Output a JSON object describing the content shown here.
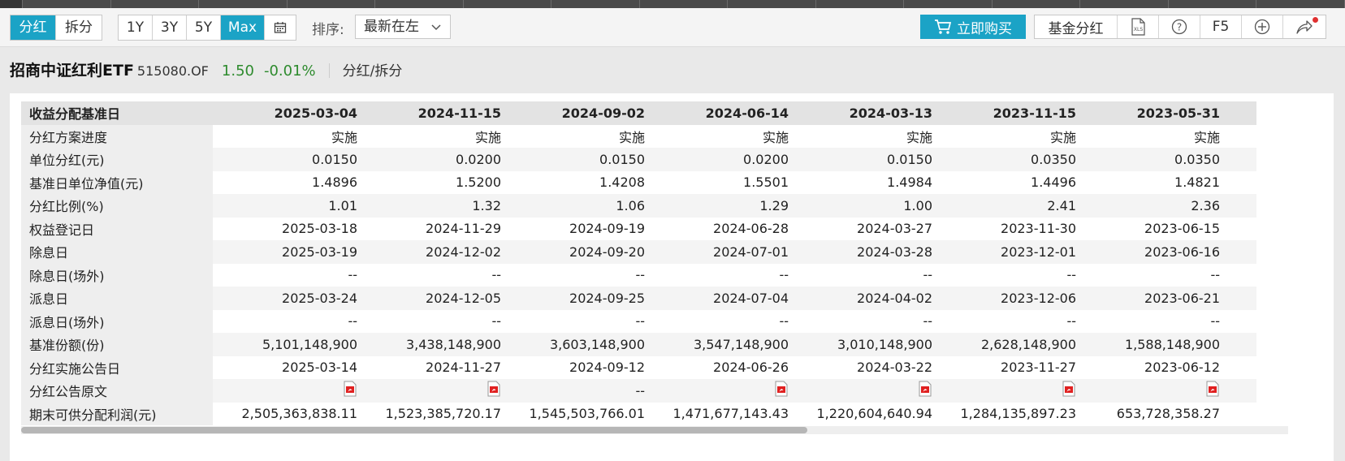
{
  "toolbar": {
    "view_tabs": [
      "分红",
      "拆分"
    ],
    "period_tabs": [
      "1Y",
      "3Y",
      "5Y",
      "Max"
    ],
    "sort_label": "排序:",
    "sort_value": "最新在左",
    "buy_label": "立即购买",
    "fund_dividend_label": "基金分红",
    "f5_label": "F5",
    "accent_color": "#1ba3c6"
  },
  "fund": {
    "name": "招商中证红利ETF",
    "code": "515080.OF",
    "nav": "1.50",
    "change": "-0.01%",
    "view": "分红/拆分"
  },
  "table": {
    "header_label": "收益分配基准日",
    "dates": [
      "2025-03-04",
      "2024-11-15",
      "2024-09-02",
      "2024-06-14",
      "2024-03-13",
      "2023-11-15",
      "2023-05-31"
    ],
    "rows": [
      {
        "label": "分红方案进度",
        "values": [
          "实施",
          "实施",
          "实施",
          "实施",
          "实施",
          "实施",
          "实施"
        ]
      },
      {
        "label": "单位分红(元)",
        "values": [
          "0.0150",
          "0.0200",
          "0.0150",
          "0.0200",
          "0.0150",
          "0.0350",
          "0.0350"
        ]
      },
      {
        "label": "基准日单位净值(元)",
        "values": [
          "1.4896",
          "1.5200",
          "1.4208",
          "1.5501",
          "1.4984",
          "1.4496",
          "1.4821"
        ]
      },
      {
        "label": "分红比例(%)",
        "values": [
          "1.01",
          "1.32",
          "1.06",
          "1.29",
          "1.00",
          "2.41",
          "2.36"
        ]
      },
      {
        "label": "权益登记日",
        "values": [
          "2025-03-18",
          "2024-11-29",
          "2024-09-19",
          "2024-06-28",
          "2024-03-27",
          "2023-11-30",
          "2023-06-15"
        ]
      },
      {
        "label": "除息日",
        "values": [
          "2025-03-19",
          "2024-12-02",
          "2024-09-20",
          "2024-07-01",
          "2024-03-28",
          "2023-12-01",
          "2023-06-16"
        ]
      },
      {
        "label": "除息日(场外)",
        "values": [
          "--",
          "--",
          "--",
          "--",
          "--",
          "--",
          "--"
        ]
      },
      {
        "label": "派息日",
        "values": [
          "2025-03-24",
          "2024-12-05",
          "2024-09-25",
          "2024-07-04",
          "2024-04-02",
          "2023-12-06",
          "2023-06-21"
        ]
      },
      {
        "label": "派息日(场外)",
        "values": [
          "--",
          "--",
          "--",
          "--",
          "--",
          "--",
          "--"
        ]
      },
      {
        "label": "基准份额(份)",
        "values": [
          "5,101,148,900",
          "3,438,148,900",
          "3,603,148,900",
          "3,547,148,900",
          "3,010,148,900",
          "2,628,148,900",
          "1,588,148,900"
        ]
      },
      {
        "label": "分红实施公告日",
        "values": [
          "2025-03-14",
          "2024-11-27",
          "2024-09-12",
          "2024-06-26",
          "2024-03-22",
          "2023-11-27",
          "2023-06-12"
        ]
      },
      {
        "label": "分红公告原文",
        "values": [
          "pdf-icon",
          "pdf-icon",
          "--",
          "pdf-icon",
          "pdf-icon",
          "pdf-icon",
          "pdf-icon"
        ]
      },
      {
        "label": "期末可供分配利润(元)",
        "values": [
          "2,505,363,838.11",
          "1,523,385,720.17",
          "1,545,503,766.01",
          "1,471,677,143.43",
          "1,220,604,640.94",
          "1,284,135,897.23",
          "653,728,358.27"
        ]
      }
    ]
  }
}
